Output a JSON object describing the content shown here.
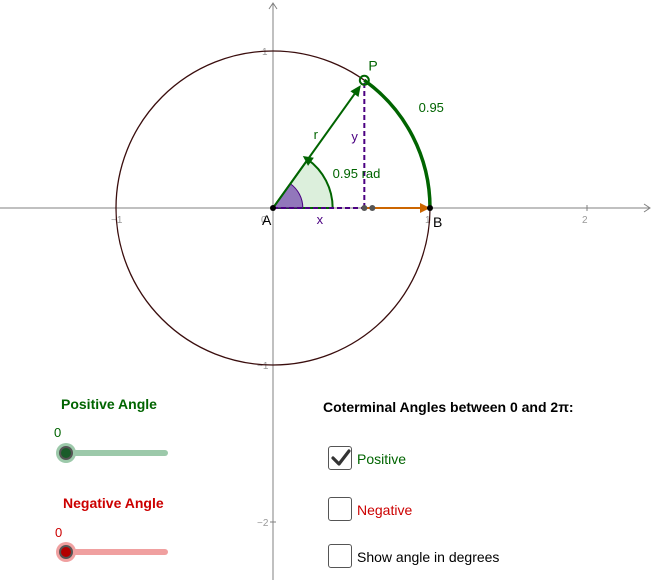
{
  "graph": {
    "x_min": -1.75,
    "x_max": 2.43,
    "y_min": -2.4,
    "y_max": 1.3,
    "x_ticks": [
      {
        "v": -1,
        "label": "−1"
      },
      {
        "v": 0,
        "label": "0"
      },
      {
        "v": 1,
        "label": "1"
      },
      {
        "v": 2,
        "label": "2"
      }
    ],
    "y_ticks": [
      {
        "v": 1,
        "label": "1"
      },
      {
        "v": -1,
        "label": "−1"
      },
      {
        "v": -2,
        "label": "−2"
      }
    ],
    "angle_rad": 0.95,
    "labels": {
      "point_p": "P",
      "point_a": "A",
      "point_b": "B",
      "radius": "r",
      "x_leg": "x",
      "y_leg": "y",
      "angle_label": "0.95 rad",
      "arc_label": "0.95"
    },
    "colors": {
      "circle": "#3a0d0d",
      "green": "#006400",
      "purple": "#4b0082",
      "orange": "#cc6600",
      "axis": "#808080",
      "sector_fill": "#dcefdc",
      "inner_sector_fill": "#7a4fb0"
    }
  },
  "positive_slider": {
    "title": "Positive Angle",
    "value": 0,
    "value_label": "0",
    "color": "#006400",
    "track_color": "#9cc9aa",
    "knob_color": "#1a5c2a"
  },
  "negative_slider": {
    "title": "Negative Angle",
    "value": 0,
    "value_label": "0",
    "color": "#cc0000",
    "track_color": "#f0a0a0",
    "knob_color": "#b30000"
  },
  "coterminal": {
    "title": "Coterminal Angles between 0 and 2π:",
    "positive": {
      "label": "Positive",
      "checked": true,
      "color": "#006400"
    },
    "negative": {
      "label": "Negative",
      "checked": false,
      "color": "#cc0000"
    },
    "degrees": {
      "label": "Show angle in degrees",
      "checked": false,
      "color": "#000000"
    }
  }
}
